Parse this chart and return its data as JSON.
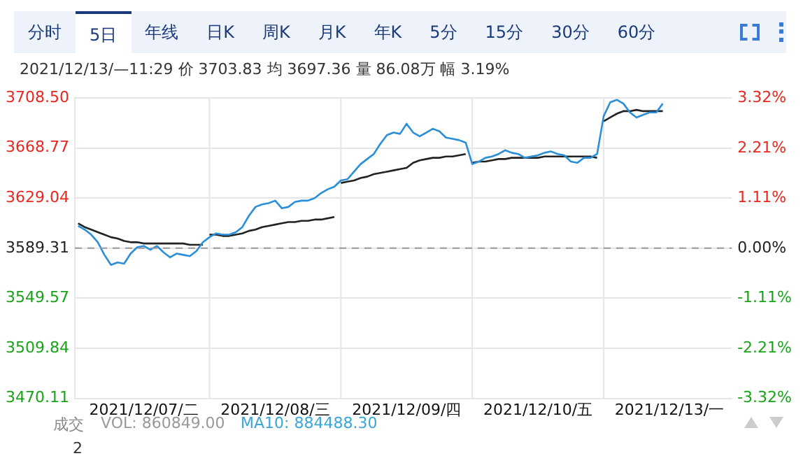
{
  "chart_data": {
    "type": "line",
    "title": "2021/12/13/—11:29 价 3703.83 均 3697.36 量 86.08万 幅 3.19%",
    "annotations": [
      "分时",
      "5日",
      "年线",
      "日K",
      "周K",
      "月K",
      "年K",
      "5分",
      "15分",
      "30分",
      "60分",
      "成交",
      "VOL: 860849.00",
      "MA10: 884488.30",
      "2"
    ],
    "categories": [
      null,
      null,
      null,
      null,
      null,
      null,
      null,
      null,
      null,
      null,
      "2021/12/07/二",
      null,
      null,
      null,
      null,
      null,
      null,
      null,
      null,
      null,
      null,
      null,
      null,
      null,
      null,
      null,
      null,
      null,
      null,
      null,
      "2021/12/08/三",
      null,
      null,
      null,
      null,
      null,
      null,
      null,
      null,
      null,
      null,
      null,
      null,
      null,
      null,
      null,
      null,
      null,
      null,
      null,
      "2021/12/09/四",
      null,
      null,
      null,
      null,
      null,
      null,
      null,
      null,
      null,
      null,
      null,
      null,
      null,
      null,
      null,
      null,
      null,
      null,
      null,
      "2021/12/10/五",
      null,
      null,
      null,
      null,
      null,
      null,
      null,
      null,
      null,
      null,
      null,
      null,
      null,
      null,
      null,
      null,
      null,
      null,
      null,
      "2021/12/13/一",
      null,
      null,
      null,
      null,
      null,
      null,
      null,
      null,
      null
    ],
    "ylim": [
      3470.11,
      3708.5
    ],
    "yticks": [
      3470.11,
      3509.84,
      3549.57,
      3589.31,
      3629.04,
      3668.77,
      {
        "value": 3708.5,
        "label": "3708.50"
      }
    ],
    "y2lim": [
      -3.32,
      3.32
    ],
    "y2ticks": [
      {
        "value": -3.32,
        "label": "-3.32%"
      },
      {
        "value": -2.21,
        "label": "-2.21%"
      },
      {
        "value": -1.11,
        "label": "-1.11%"
      },
      {
        "value": 0,
        "label": "0.00%"
      },
      {
        "value": 1.11,
        "label": "1.11%"
      },
      {
        "value": 2.21,
        "label": "2.21%"
      },
      {
        "value": 3.32,
        "label": "3.32%"
      }
    ],
    "grid": true,
    "legend": false,
    "marker": "none",
    "line_style": "solid",
    "ref_lines": [
      {
        "axis": "y",
        "value": 3589.31,
        "color": "#999999",
        "line_style": "dashed"
      }
    ],
    "series": [
      {
        "color": "#2a8fd8",
        "values": [
          3607,
          3604,
          3600,
          3594,
          3584,
          3576,
          3578,
          3577,
          3585,
          3590,
          3591,
          3588,
          3591,
          3586,
          3582,
          3585,
          3584,
          3583,
          3587,
          3594,
          3598,
          3601,
          3600,
          3600,
          3602,
          3606,
          3615,
          3622,
          3624,
          3625,
          3627,
          3621,
          3622,
          3626,
          3627,
          3627,
          3629,
          3633,
          3636,
          3638,
          3643,
          3644,
          3650,
          3656,
          3660,
          3664,
          3672,
          3679,
          3681,
          3680,
          3688,
          3681,
          3678,
          3681,
          3684,
          3682,
          3677,
          3676,
          3675,
          3673,
          3656,
          3658,
          3661,
          3662,
          3664,
          3667,
          3665,
          3664,
          3661,
          3662,
          3663,
          3665,
          3666,
          3664,
          3663,
          3658,
          3657,
          3661,
          3661,
          3664,
          3694,
          3705,
          3707,
          3704,
          3697,
          3693,
          3695,
          3697,
          3697,
          3704,
          null,
          null,
          null,
          null,
          null,
          null,
          null,
          null,
          null,
          null
        ]
      },
      {
        "color": "#222222",
        "values": [
          3609,
          3606,
          3604,
          3602,
          3600,
          3598,
          3597,
          3595,
          3594,
          3594,
          3593,
          3593,
          3593,
          3593,
          3593,
          3593,
          3593,
          3592,
          3592,
          3592,
          null,
          null,
          null,
          null,
          null,
          null,
          null,
          null,
          null,
          null,
          null,
          null,
          null,
          null,
          null,
          null,
          null,
          null,
          null,
          null,
          null,
          null,
          null,
          null,
          null,
          null,
          null,
          null,
          null,
          null,
          null,
          null,
          null,
          null,
          null,
          null,
          null,
          null,
          null,
          null,
          null,
          null,
          null,
          null,
          null,
          null,
          null,
          null,
          null,
          null,
          null,
          null,
          null,
          null,
          null,
          null,
          null,
          null,
          null,
          null,
          null,
          null,
          null,
          null,
          null,
          null,
          null,
          null,
          null,
          null,
          null,
          null,
          null,
          null,
          null,
          null,
          null,
          null,
          null,
          null
        ]
      },
      {
        "color": "#222222",
        "values": [
          null,
          null,
          null,
          null,
          null,
          null,
          null,
          null,
          null,
          null,
          null,
          null,
          null,
          null,
          null,
          null,
          null,
          null,
          null,
          null,
          3600,
          3600,
          3599,
          3599,
          3600,
          3601,
          3603,
          3604,
          3606,
          3607,
          3608,
          3609,
          3610,
          3610,
          3611,
          3611,
          3612,
          3612,
          3613,
          3614,
          null,
          null,
          null,
          null,
          null,
          null,
          null,
          null,
          null,
          null,
          null,
          null,
          null,
          null,
          null,
          null,
          null,
          null,
          null,
          null,
          null,
          null,
          null,
          null,
          null,
          null,
          null,
          null,
          null,
          null,
          null,
          null,
          null,
          null,
          null,
          null,
          null,
          null,
          null,
          null,
          null,
          null,
          null,
          null,
          null,
          null,
          null,
          null,
          null,
          null,
          null,
          null,
          null,
          null,
          null,
          null,
          null,
          null,
          null,
          null
        ]
      },
      {
        "color": "#222222",
        "values": [
          null,
          null,
          null,
          null,
          null,
          null,
          null,
          null,
          null,
          null,
          null,
          null,
          null,
          null,
          null,
          null,
          null,
          null,
          null,
          null,
          null,
          null,
          null,
          null,
          null,
          null,
          null,
          null,
          null,
          null,
          null,
          null,
          null,
          null,
          null,
          null,
          null,
          null,
          null,
          null,
          3641,
          3642,
          3643,
          3645,
          3646,
          3648,
          3649,
          3650,
          3651,
          3652,
          3653,
          3657,
          3659,
          3660,
          3661,
          3661,
          3662,
          3662,
          3663,
          3664,
          null,
          null,
          null,
          null,
          null,
          null,
          null,
          null,
          null,
          null,
          null,
          null,
          null,
          null,
          null,
          null,
          null,
          null,
          null,
          null,
          null,
          null,
          null,
          null,
          null,
          null,
          null,
          null,
          null,
          null,
          null,
          null,
          null,
          null,
          null,
          null,
          null,
          null,
          null,
          null
        ]
      },
      {
        "color": "#222222",
        "values": [
          null,
          null,
          null,
          null,
          null,
          null,
          null,
          null,
          null,
          null,
          null,
          null,
          null,
          null,
          null,
          null,
          null,
          null,
          null,
          null,
          null,
          null,
          null,
          null,
          null,
          null,
          null,
          null,
          null,
          null,
          null,
          null,
          null,
          null,
          null,
          null,
          null,
          null,
          null,
          null,
          null,
          null,
          null,
          null,
          null,
          null,
          null,
          null,
          null,
          null,
          null,
          null,
          null,
          null,
          null,
          null,
          null,
          null,
          null,
          null,
          3657,
          3658,
          3658,
          3659,
          3660,
          3660,
          3661,
          3661,
          3661,
          3661,
          3661,
          3662,
          3662,
          3662,
          3662,
          3662,
          3662,
          3662,
          3662,
          3661,
          null,
          null,
          null,
          null,
          null,
          null,
          null,
          null,
          null,
          null,
          null,
          null,
          null,
          null,
          null,
          null,
          null,
          null,
          null,
          null
        ]
      },
      {
        "color": "#222222",
        "values": [
          null,
          null,
          null,
          null,
          null,
          null,
          null,
          null,
          null,
          null,
          null,
          null,
          null,
          null,
          null,
          null,
          null,
          null,
          null,
          null,
          null,
          null,
          null,
          null,
          null,
          null,
          null,
          null,
          null,
          null,
          null,
          null,
          null,
          null,
          null,
          null,
          null,
          null,
          null,
          null,
          null,
          null,
          null,
          null,
          null,
          null,
          null,
          null,
          null,
          null,
          null,
          null,
          null,
          null,
          null,
          null,
          null,
          null,
          null,
          null,
          null,
          null,
          null,
          null,
          null,
          null,
          null,
          null,
          null,
          null,
          null,
          null,
          null,
          null,
          null,
          null,
          null,
          null,
          null,
          null,
          3690,
          3693,
          3696,
          3698,
          3698,
          3699,
          3698,
          3698,
          3698,
          3698,
          null,
          null,
          null,
          null,
          null,
          null,
          null,
          null,
          null,
          null
        ]
      }
    ]
  }
}
